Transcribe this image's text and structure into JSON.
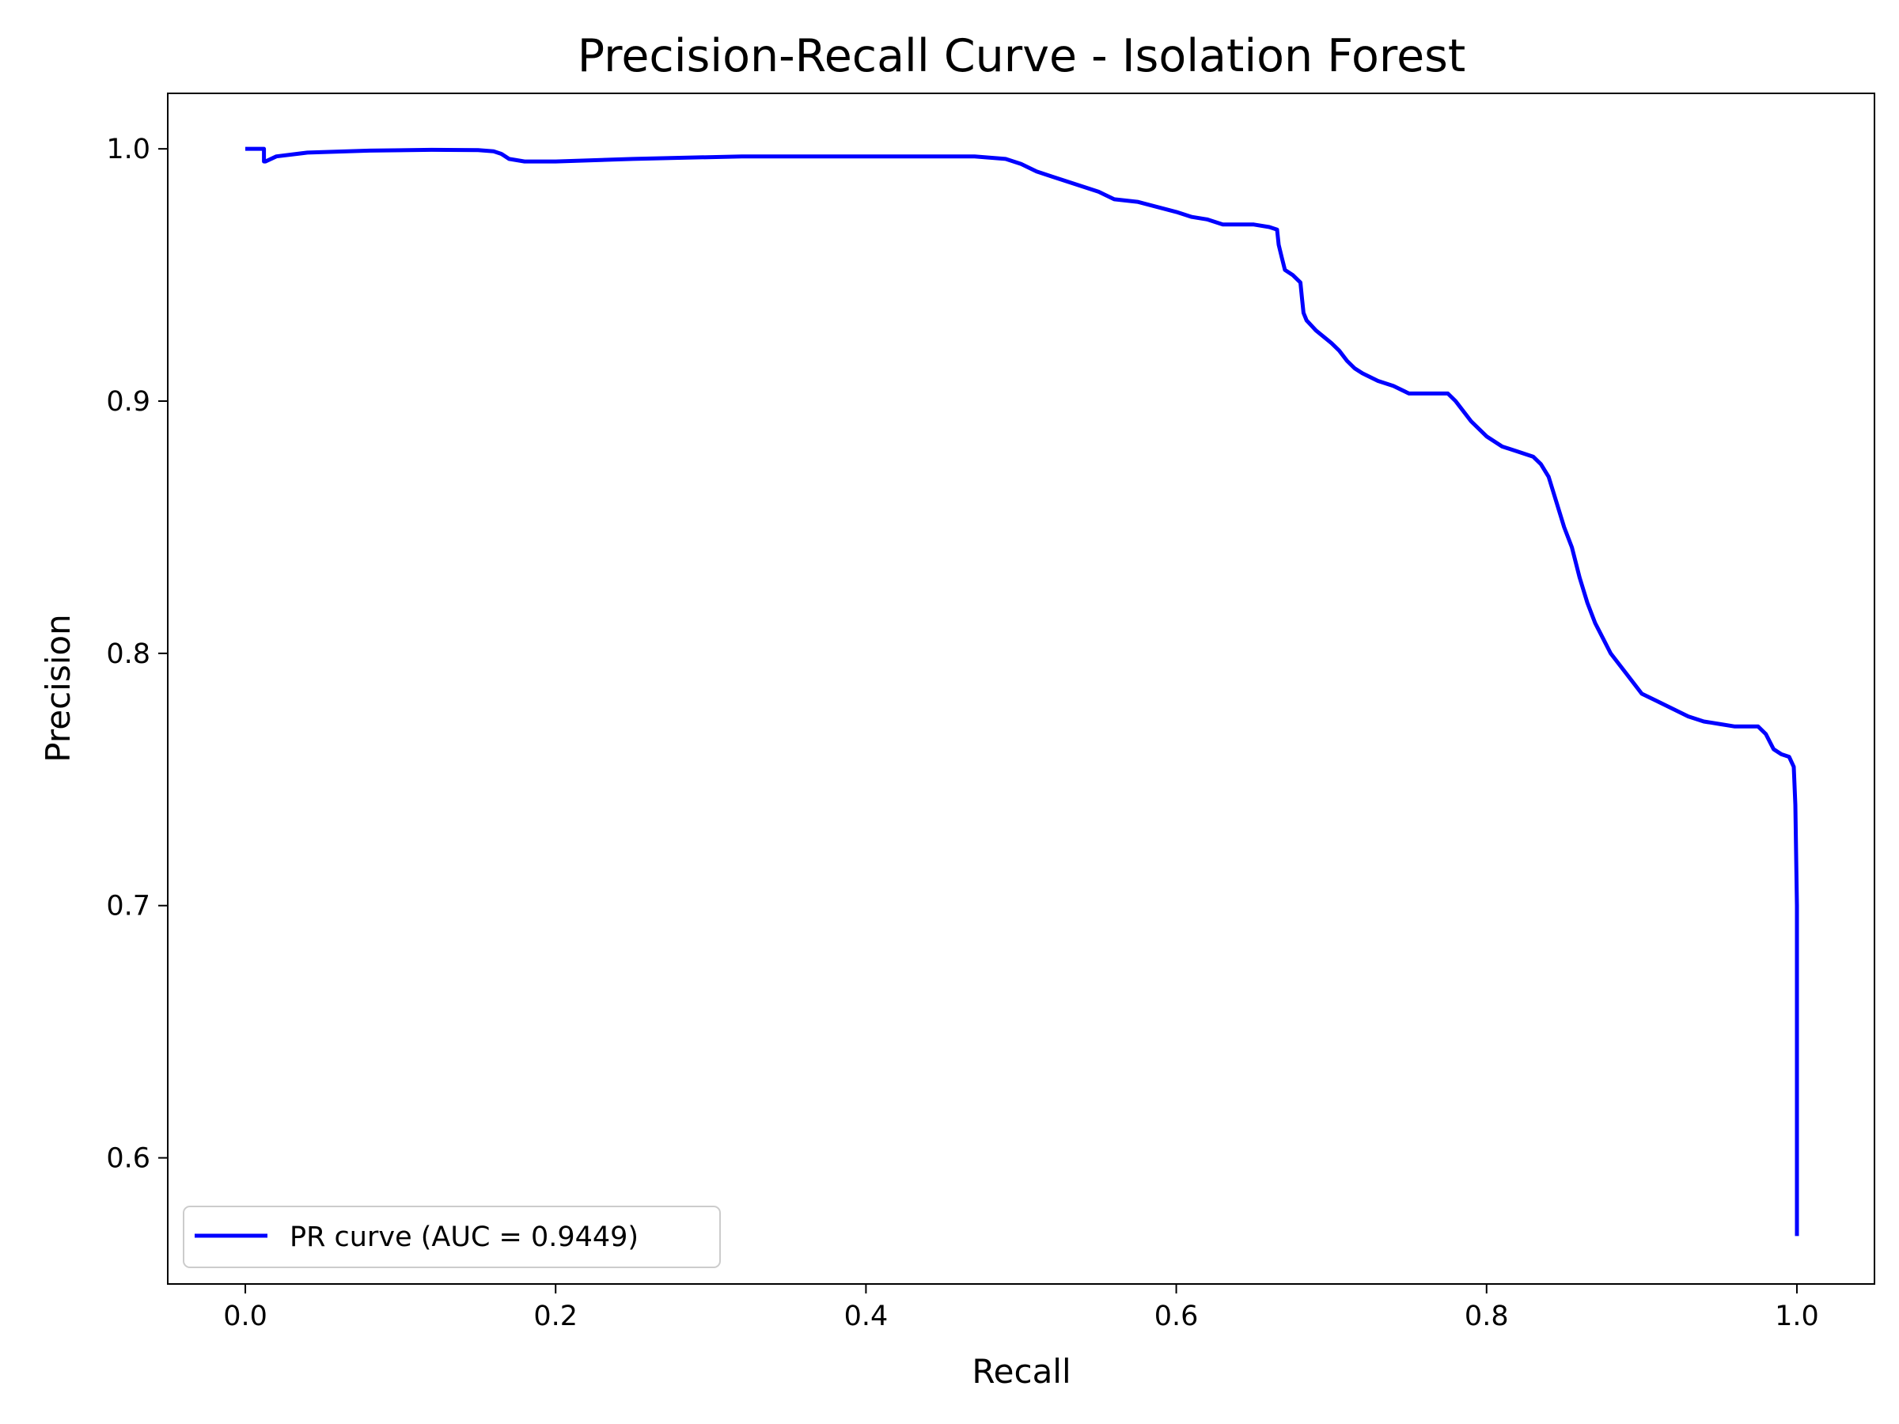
{
  "chart_data": {
    "type": "line",
    "title": "Precision-Recall Curve - Isolation Forest",
    "xlabel": "Recall",
    "ylabel": "Precision",
    "xlim": [
      -0.05,
      1.05
    ],
    "ylim": [
      0.55,
      1.022
    ],
    "xticks": [
      0.0,
      0.2,
      0.4,
      0.6,
      0.8,
      1.0
    ],
    "xtick_labels": [
      "0.0",
      "0.2",
      "0.4",
      "0.6",
      "0.8",
      "1.0"
    ],
    "yticks": [
      0.6,
      0.7,
      0.8,
      0.9,
      1.0
    ],
    "ytick_labels": [
      "0.6",
      "0.7",
      "0.8",
      "0.9",
      "1.0"
    ],
    "grid": false,
    "legend": {
      "placement": "lower-left",
      "entries": [
        "PR curve (AUC = 0.9449)"
      ]
    },
    "series": [
      {
        "name": "PR curve (AUC = 0.9449)",
        "color": "#0000ff",
        "x": [
          0.0,
          0.012,
          0.012,
          0.013,
          0.02,
          0.04,
          0.08,
          0.12,
          0.15,
          0.16,
          0.165,
          0.17,
          0.18,
          0.2,
          0.25,
          0.32,
          0.35,
          0.4,
          0.45,
          0.47,
          0.49,
          0.5,
          0.51,
          0.52,
          0.53,
          0.55,
          0.56,
          0.575,
          0.6,
          0.61,
          0.62,
          0.63,
          0.64,
          0.65,
          0.66,
          0.665,
          0.666,
          0.668,
          0.67,
          0.675,
          0.68,
          0.681,
          0.682,
          0.684,
          0.687,
          0.69,
          0.7,
          0.705,
          0.71,
          0.715,
          0.72,
          0.73,
          0.74,
          0.75,
          0.76,
          0.77,
          0.775,
          0.78,
          0.79,
          0.8,
          0.81,
          0.82,
          0.83,
          0.835,
          0.84,
          0.845,
          0.85,
          0.855,
          0.86,
          0.865,
          0.87,
          0.875,
          0.88,
          0.89,
          0.9,
          0.91,
          0.92,
          0.93,
          0.94,
          0.95,
          0.96,
          0.97,
          0.975,
          0.98,
          0.985,
          0.99,
          0.995,
          0.998,
          0.999,
          1.0,
          1.0,
          1.0,
          1.0
        ],
        "y": [
          1.0,
          1.0,
          0.995,
          0.995,
          0.997,
          0.9985,
          0.9993,
          0.9996,
          0.9995,
          0.999,
          0.998,
          0.996,
          0.995,
          0.995,
          0.996,
          0.997,
          0.997,
          0.997,
          0.997,
          0.997,
          0.996,
          0.994,
          0.991,
          0.989,
          0.987,
          0.983,
          0.98,
          0.979,
          0.975,
          0.973,
          0.972,
          0.97,
          0.97,
          0.97,
          0.969,
          0.968,
          0.962,
          0.957,
          0.952,
          0.95,
          0.947,
          0.941,
          0.935,
          0.932,
          0.93,
          0.928,
          0.923,
          0.92,
          0.916,
          0.913,
          0.911,
          0.908,
          0.906,
          0.903,
          0.903,
          0.903,
          0.903,
          0.9,
          0.892,
          0.886,
          0.882,
          0.88,
          0.878,
          0.875,
          0.87,
          0.86,
          0.85,
          0.842,
          0.83,
          0.82,
          0.812,
          0.806,
          0.8,
          0.792,
          0.784,
          0.781,
          0.778,
          0.775,
          0.773,
          0.772,
          0.771,
          0.771,
          0.771,
          0.768,
          0.762,
          0.76,
          0.759,
          0.755,
          0.74,
          0.7,
          0.65,
          0.6,
          0.569
        ]
      }
    ]
  }
}
